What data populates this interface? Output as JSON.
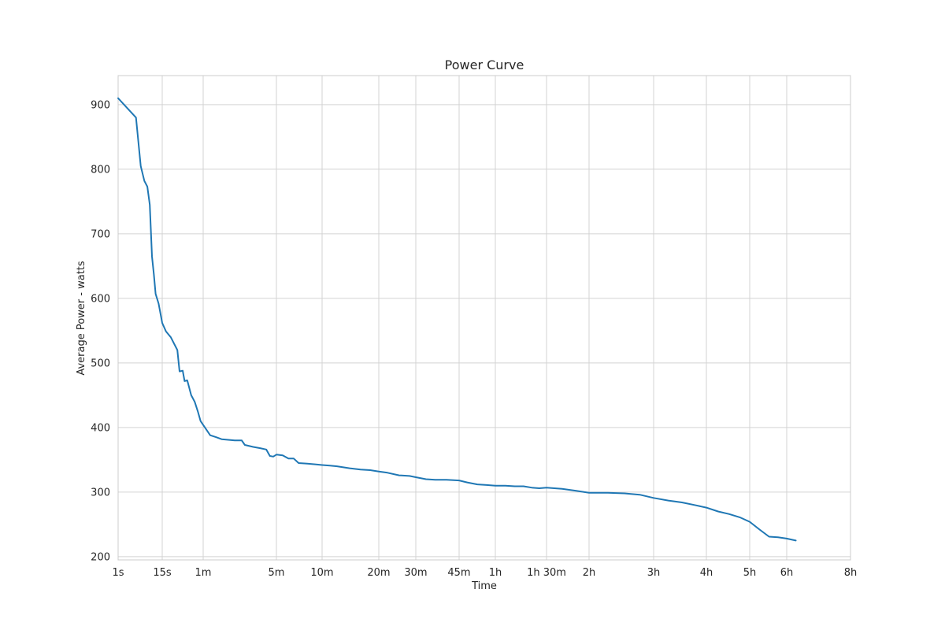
{
  "chart_data": {
    "type": "line",
    "title": "Power Curve",
    "xlabel": "Time",
    "ylabel": "Average Power - watts",
    "grid": true,
    "line_color": "#1f77b4",
    "grid_color": "#d3d3d3",
    "x_scale": "custom, ticks labeled with durations",
    "xticks": [
      "1s",
      "15s",
      "1m",
      "5m",
      "10m",
      "20m",
      "30m",
      "45m",
      "1h",
      "1h 30m",
      "2h",
      "3h",
      "4h",
      "5h",
      "6h",
      "8h"
    ],
    "yticks": [
      200,
      300,
      400,
      500,
      600,
      700,
      800,
      900
    ],
    "ylim": [
      195,
      945
    ],
    "series": [
      {
        "points": [
          {
            "x": "1s",
            "y": 910
          },
          {
            "x": "3s",
            "y": 880
          },
          {
            "x": "4s",
            "y": 805
          },
          {
            "x": "5s",
            "y": 782
          },
          {
            "x": "6s",
            "y": 773
          },
          {
            "x": "7s",
            "y": 745
          },
          {
            "x": "8s",
            "y": 665
          },
          {
            "x": "9s",
            "y": 637
          },
          {
            "x": "10s",
            "y": 607
          },
          {
            "x": "12s",
            "y": 592
          },
          {
            "x": "15s",
            "y": 562
          },
          {
            "x": "17s",
            "y": 549
          },
          {
            "x": "20s",
            "y": 540
          },
          {
            "x": "25s",
            "y": 520
          },
          {
            "x": "27s",
            "y": 487
          },
          {
            "x": "30s",
            "y": 488
          },
          {
            "x": "32s",
            "y": 472
          },
          {
            "x": "35s",
            "y": 473
          },
          {
            "x": "40s",
            "y": 450
          },
          {
            "x": "45s",
            "y": 440
          },
          {
            "x": "50s",
            "y": 425
          },
          {
            "x": "55s",
            "y": 410
          },
          {
            "x": "1m",
            "y": 404
          },
          {
            "x": "1m 10s",
            "y": 388
          },
          {
            "x": "1m 20s",
            "y": 385
          },
          {
            "x": "1m 30s",
            "y": 382
          },
          {
            "x": "2m",
            "y": 380
          },
          {
            "x": "2m 20s",
            "y": 380
          },
          {
            "x": "2m 30s",
            "y": 373
          },
          {
            "x": "3m",
            "y": 370
          },
          {
            "x": "3m 30s",
            "y": 368
          },
          {
            "x": "4m",
            "y": 366
          },
          {
            "x": "4m 20s",
            "y": 356
          },
          {
            "x": "4m 40s",
            "y": 355
          },
          {
            "x": "5m",
            "y": 358
          },
          {
            "x": "5m 30s",
            "y": 357
          },
          {
            "x": "6m",
            "y": 352
          },
          {
            "x": "6m 30s",
            "y": 352
          },
          {
            "x": "7m",
            "y": 345
          },
          {
            "x": "8m",
            "y": 344
          },
          {
            "x": "9m",
            "y": 343
          },
          {
            "x": "10m",
            "y": 342
          },
          {
            "x": "11m",
            "y": 341
          },
          {
            "x": "12m",
            "y": 340
          },
          {
            "x": "14m",
            "y": 337
          },
          {
            "x": "16m",
            "y": 335
          },
          {
            "x": "18m",
            "y": 334
          },
          {
            "x": "20m",
            "y": 332
          },
          {
            "x": "22m",
            "y": 330
          },
          {
            "x": "25m",
            "y": 326
          },
          {
            "x": "28m",
            "y": 325
          },
          {
            "x": "30m",
            "y": 323
          },
          {
            "x": "33m",
            "y": 320
          },
          {
            "x": "36m",
            "y": 319
          },
          {
            "x": "40m",
            "y": 319
          },
          {
            "x": "45m",
            "y": 318
          },
          {
            "x": "48m",
            "y": 315
          },
          {
            "x": "52m",
            "y": 312
          },
          {
            "x": "56m",
            "y": 311
          },
          {
            "x": "1h",
            "y": 310
          },
          {
            "x": "1h 05m",
            "y": 310
          },
          {
            "x": "1h 10m",
            "y": 309
          },
          {
            "x": "1h 15m",
            "y": 309
          },
          {
            "x": "1h 20m",
            "y": 307
          },
          {
            "x": "1h 25m",
            "y": 306
          },
          {
            "x": "1h 30m",
            "y": 307
          },
          {
            "x": "1h 40m",
            "y": 305
          },
          {
            "x": "1h 50m",
            "y": 302
          },
          {
            "x": "2h",
            "y": 299
          },
          {
            "x": "2h 15m",
            "y": 299
          },
          {
            "x": "2h 30m",
            "y": 298
          },
          {
            "x": "2h 45m",
            "y": 296
          },
          {
            "x": "3h",
            "y": 291
          },
          {
            "x": "3h 15m",
            "y": 287
          },
          {
            "x": "3h 30m",
            "y": 284
          },
          {
            "x": "3h 45m",
            "y": 280
          },
          {
            "x": "4h",
            "y": 276
          },
          {
            "x": "4h 15m",
            "y": 270
          },
          {
            "x": "4h 30m",
            "y": 266
          },
          {
            "x": "4h 45m",
            "y": 261
          },
          {
            "x": "5h",
            "y": 254
          },
          {
            "x": "5h 15m",
            "y": 242
          },
          {
            "x": "5h 30m",
            "y": 231
          },
          {
            "x": "5h 45m",
            "y": 230
          },
          {
            "x": "6h",
            "y": 228
          },
          {
            "x": "6h 15m",
            "y": 225
          }
        ]
      }
    ]
  }
}
